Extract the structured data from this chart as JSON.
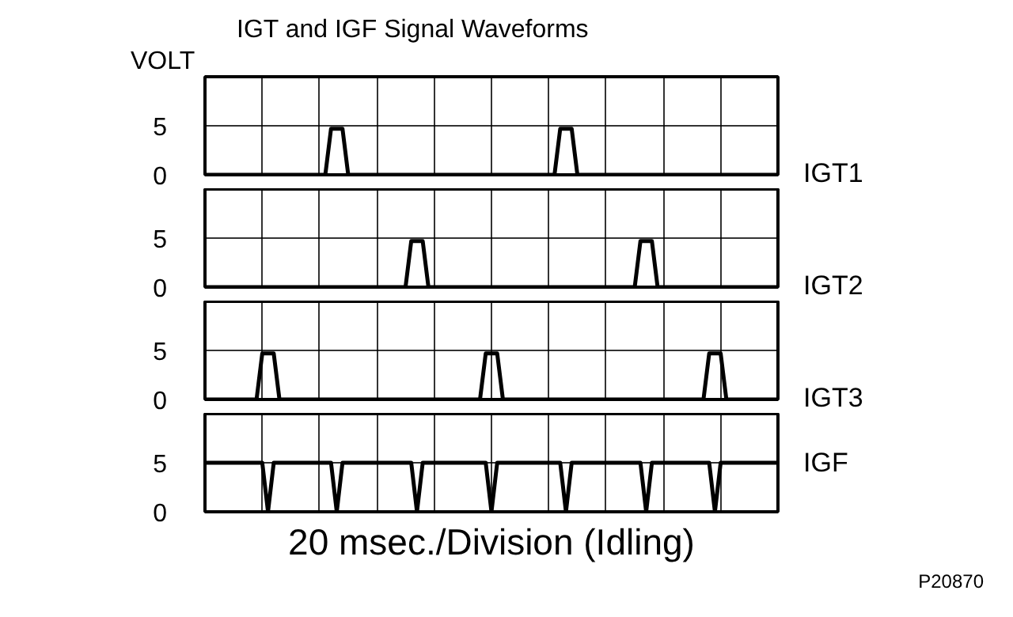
{
  "chart_data": [
    {
      "type": "line",
      "title": "IGT and IGF Signal Waveforms",
      "ylabel": "VOLT",
      "ylim": [
        0,
        10
      ],
      "yticks": [
        0,
        5
      ],
      "grid": true,
      "tick_labels": "y",
      "categories": [
        null,
        null,
        null,
        null,
        null,
        null,
        null,
        null,
        null,
        null,
        null,
        null,
        null,
        null,
        null,
        null,
        null,
        null,
        null,
        null,
        null,
        null,
        null,
        null,
        null,
        null,
        null,
        null,
        null,
        null,
        null,
        null,
        null,
        null,
        null,
        null,
        null,
        null,
        null,
        null,
        null,
        null,
        null,
        null,
        null,
        null,
        null,
        null,
        null,
        null,
        null,
        null,
        null,
        null,
        null,
        null,
        null,
        null,
        null,
        null,
        null,
        null,
        null,
        null,
        null,
        null,
        null,
        null,
        null,
        null,
        null,
        null,
        null,
        null,
        null,
        null,
        null,
        null,
        null,
        null,
        null,
        null,
        null,
        null,
        null,
        null,
        null,
        null,
        null,
        null,
        null,
        null,
        null,
        null,
        null,
        null,
        null,
        null,
        null,
        null,
        null
      ],
      "series": [
        {
          "name": "IGT1",
          "color": "#000000",
          "values": [
            0,
            0,
            0,
            0,
            0,
            0,
            0,
            0,
            0,
            0,
            0,
            0,
            0,
            0,
            0,
            0,
            0,
            0,
            0,
            0,
            0,
            0,
            4.7,
            4.7,
            4.7,
            0,
            0,
            0,
            0,
            0,
            0,
            0,
            0,
            0,
            0,
            0,
            0,
            0,
            0,
            0,
            0,
            0,
            0,
            0,
            0,
            0,
            0,
            0,
            0,
            0,
            0,
            0,
            0,
            0,
            0,
            0,
            0,
            0,
            0,
            0,
            0,
            0,
            4.7,
            4.7,
            4.7,
            0,
            0,
            0,
            0,
            0,
            0,
            0,
            0,
            0,
            0,
            0,
            0,
            0,
            0,
            0,
            0,
            0,
            0,
            0,
            0,
            0,
            0,
            0,
            0,
            0,
            0,
            0,
            0,
            0,
            0,
            0,
            0,
            0,
            0,
            0,
            0
          ]
        }
      ]
    },
    {
      "type": "line",
      "ylim": [
        0,
        10
      ],
      "yticks": [
        0,
        5
      ],
      "grid": true,
      "tick_labels": "y",
      "categories": [
        null,
        null,
        null,
        null,
        null,
        null,
        null,
        null,
        null,
        null,
        null,
        null,
        null,
        null,
        null,
        null,
        null,
        null,
        null,
        null,
        null,
        null,
        null,
        null,
        null,
        null,
        null,
        null,
        null,
        null,
        null,
        null,
        null,
        null,
        null,
        null,
        null,
        null,
        null,
        null,
        null,
        null,
        null,
        null,
        null,
        null,
        null,
        null,
        null,
        null,
        null,
        null,
        null,
        null,
        null,
        null,
        null,
        null,
        null,
        null,
        null,
        null,
        null,
        null,
        null,
        null,
        null,
        null,
        null,
        null,
        null,
        null,
        null,
        null,
        null,
        null,
        null,
        null,
        null,
        null,
        null,
        null,
        null,
        null,
        null,
        null,
        null,
        null,
        null,
        null,
        null,
        null,
        null,
        null,
        null,
        null,
        null,
        null,
        null,
        null,
        null
      ],
      "series": [
        {
          "name": "IGT2",
          "color": "#000000",
          "values": [
            0,
            0,
            0,
            0,
            0,
            0,
            0,
            0,
            0,
            0,
            0,
            0,
            0,
            0,
            0,
            0,
            0,
            0,
            0,
            0,
            0,
            0,
            0,
            0,
            0,
            0,
            0,
            0,
            0,
            0,
            0,
            0,
            0,
            0,
            0,
            0,
            4.7,
            4.7,
            4.7,
            0,
            0,
            0,
            0,
            0,
            0,
            0,
            0,
            0,
            0,
            0,
            0,
            0,
            0,
            0,
            0,
            0,
            0,
            0,
            0,
            0,
            0,
            0,
            0,
            0,
            0,
            0,
            0,
            0,
            0,
            0,
            0,
            0,
            0,
            0,
            0,
            0,
            4.7,
            4.7,
            4.7,
            0,
            0,
            0,
            0,
            0,
            0,
            0,
            0,
            0,
            0,
            0,
            0,
            0,
            0,
            0,
            0,
            0,
            0,
            0,
            0,
            0,
            0
          ]
        }
      ]
    },
    {
      "type": "line",
      "ylim": [
        0,
        10
      ],
      "yticks": [
        0,
        5
      ],
      "grid": true,
      "tick_labels": "y",
      "categories": [
        null,
        null,
        null,
        null,
        null,
        null,
        null,
        null,
        null,
        null,
        null,
        null,
        null,
        null,
        null,
        null,
        null,
        null,
        null,
        null,
        null,
        null,
        null,
        null,
        null,
        null,
        null,
        null,
        null,
        null,
        null,
        null,
        null,
        null,
        null,
        null,
        null,
        null,
        null,
        null,
        null,
        null,
        null,
        null,
        null,
        null,
        null,
        null,
        null,
        null,
        null,
        null,
        null,
        null,
        null,
        null,
        null,
        null,
        null,
        null,
        null,
        null,
        null,
        null,
        null,
        null,
        null,
        null,
        null,
        null,
        null,
        null,
        null,
        null,
        null,
        null,
        null,
        null,
        null,
        null,
        null,
        null,
        null,
        null,
        null,
        null,
        null,
        null,
        null,
        null,
        null,
        null,
        null,
        null,
        null,
        null,
        null,
        null,
        null,
        null,
        null
      ],
      "series": [
        {
          "name": "IGT3",
          "color": "#000000",
          "values": [
            0,
            0,
            0,
            0,
            0,
            0,
            0,
            0,
            0,
            0,
            4.7,
            4.7,
            4.7,
            0,
            0,
            0,
            0,
            0,
            0,
            0,
            0,
            0,
            0,
            0,
            0,
            0,
            0,
            0,
            0,
            0,
            0,
            0,
            0,
            0,
            0,
            0,
            0,
            0,
            0,
            0,
            0,
            0,
            0,
            0,
            0,
            0,
            0,
            0,
            0,
            4.7,
            4.7,
            4.7,
            0,
            0,
            0,
            0,
            0,
            0,
            0,
            0,
            0,
            0,
            0,
            0,
            0,
            0,
            0,
            0,
            0,
            0,
            0,
            0,
            0,
            0,
            0,
            0,
            0,
            0,
            0,
            0,
            0,
            0,
            0,
            0,
            0,
            0,
            0,
            0,
            4.7,
            4.7,
            4.7,
            0,
            0,
            0,
            0,
            0,
            0,
            0,
            0,
            0,
            0
          ]
        }
      ]
    },
    {
      "type": "line",
      "xlabel": "20 msec./Division (Idling)",
      "annotations": [
        "P20870"
      ],
      "ylim": [
        0,
        10
      ],
      "yticks": [
        0,
        5
      ],
      "grid": true,
      "tick_labels": "y",
      "categories": [
        null,
        null,
        null,
        null,
        null,
        null,
        null,
        null,
        null,
        null,
        null,
        null,
        null,
        null,
        null,
        null,
        null,
        null,
        null,
        null,
        null,
        null,
        null,
        null,
        null,
        null,
        null,
        null,
        null,
        null,
        null,
        null,
        null,
        null,
        null,
        null,
        null,
        null,
        null,
        null,
        null,
        null,
        null,
        null,
        null,
        null,
        null,
        null,
        null,
        null,
        null,
        null,
        null,
        null,
        null,
        null,
        null,
        null,
        null,
        null,
        null,
        null,
        null,
        null,
        null,
        null,
        null,
        null,
        null,
        null,
        null,
        null,
        null,
        null,
        null,
        null,
        null,
        null,
        null,
        null,
        null,
        null,
        null,
        null,
        null,
        null,
        null,
        null,
        null,
        null,
        null,
        null,
        null,
        null,
        null,
        null,
        null,
        null,
        null,
        null,
        null
      ],
      "series": [
        {
          "name": "IGF",
          "color": "#000000",
          "values": [
            5,
            5,
            5,
            5,
            5,
            5,
            5,
            5,
            5,
            5,
            5,
            0,
            5,
            5,
            5,
            5,
            5,
            5,
            5,
            5,
            5,
            5,
            5,
            0,
            5,
            5,
            5,
            5,
            5,
            5,
            5,
            5,
            5,
            5,
            5,
            5,
            5,
            0,
            5,
            5,
            5,
            5,
            5,
            5,
            5,
            5,
            5,
            5,
            5,
            5,
            0,
            5,
            5,
            5,
            5,
            5,
            5,
            5,
            5,
            5,
            5,
            5,
            5,
            0,
            5,
            5,
            5,
            5,
            5,
            5,
            5,
            5,
            5,
            5,
            5,
            5,
            5,
            0,
            5,
            5,
            5,
            5,
            5,
            5,
            5,
            5,
            5,
            5,
            5,
            0,
            5,
            5,
            5,
            5,
            5,
            5,
            5,
            5,
            5,
            5,
            5
          ]
        }
      ]
    }
  ]
}
